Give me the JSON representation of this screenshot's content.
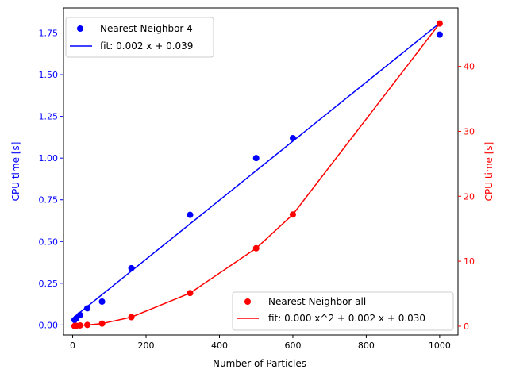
{
  "chart_data": {
    "type": "scatter",
    "xlabel": "Number of Particles",
    "ylabel_left": "CPU time [s]",
    "ylabel_right": "CPU time [s]",
    "xlim": [
      -25,
      1050
    ],
    "ylim_left": [
      -0.06,
      1.9
    ],
    "ylim_right": [
      -1.35,
      49
    ],
    "x_ticks": [
      0,
      200,
      400,
      600,
      800,
      1000
    ],
    "x_tick_labels": [
      "0",
      "200",
      "400",
      "600",
      "800",
      "1000"
    ],
    "y_ticks_left": [
      0.0,
      0.25,
      0.5,
      0.75,
      1.0,
      1.25,
      1.5,
      1.75
    ],
    "y_tick_labels_left": [
      "0.00",
      "0.25",
      "0.50",
      "0.75",
      "1.00",
      "1.25",
      "1.50",
      "1.75"
    ],
    "y_ticks_right": [
      0,
      10,
      20,
      30,
      40
    ],
    "y_tick_labels_right": [
      "0",
      "10",
      "20",
      "30",
      "40"
    ],
    "left_axis_color": "#0000ff",
    "right_axis_color": "#ff0000",
    "series": [
      {
        "name": "Nearest Neighbor 4",
        "axis": "left",
        "color": "#0000ff",
        "x": [
          5,
          10,
          20,
          40,
          80,
          160,
          320,
          500,
          600,
          1000
        ],
        "y": [
          0.03,
          0.04,
          0.06,
          0.1,
          0.14,
          0.34,
          0.66,
          1.0,
          1.12,
          1.74
        ]
      },
      {
        "name": "Nearest Neighbor all",
        "axis": "right",
        "color": "#ff0000",
        "x": [
          5,
          10,
          20,
          40,
          80,
          160,
          320,
          500,
          600,
          1000
        ],
        "y": [
          0.03,
          0.06,
          0.12,
          0.2,
          0.4,
          1.4,
          5.1,
          12.0,
          17.2,
          46.6
        ]
      }
    ],
    "fits": [
      {
        "name": "fit: 0.002 x + 0.039",
        "axis": "left",
        "color": "#0000ff",
        "x": [
          5,
          1000
        ],
        "y": [
          0.049,
          1.809
        ]
      },
      {
        "name": "fit: 0.000 x^2 + 0.002 x + 0.030",
        "axis": "right",
        "color": "#ff0000",
        "x": [
          5,
          10,
          20,
          40,
          80,
          160,
          320,
          500,
          600,
          1000
        ],
        "y": [
          0.03,
          0.06,
          0.12,
          0.2,
          0.4,
          1.4,
          5.1,
          12.0,
          17.2,
          46.6
        ]
      }
    ],
    "legend_left_placement": "top-left",
    "legend_right_placement": "bottom-right",
    "grid": false
  }
}
